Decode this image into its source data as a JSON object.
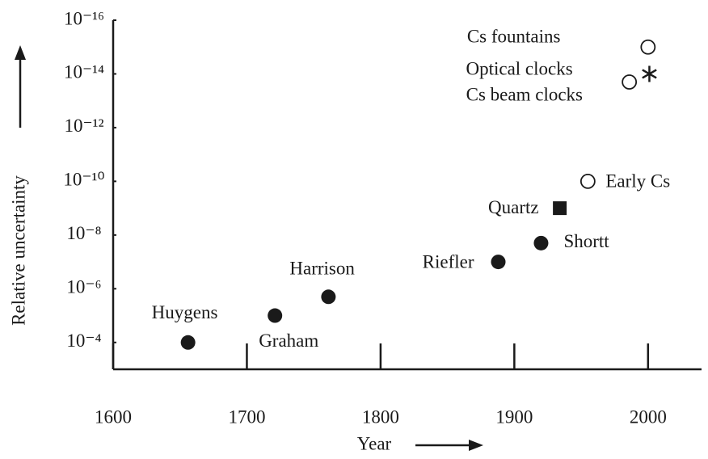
{
  "chart_data": {
    "type": "scatter",
    "xlabel": "Year",
    "ylabel": "Relative uncertainty",
    "x": [
      1656,
      1721,
      1761,
      1888,
      1920,
      1934,
      1955,
      1986,
      2000,
      2001
    ],
    "values": [
      0.0001,
      1e-05,
      2e-06,
      1e-07,
      2e-08,
      1e-09,
      1e-10,
      2e-14,
      1e-15,
      1e-14
    ],
    "labels": [
      "Huygens",
      "Graham",
      "Harrison",
      "Riefler",
      "Shortt",
      "Quartz",
      "Early Cs",
      "Cs beam clocks",
      "Cs fountains",
      "Optical clocks"
    ],
    "markers": [
      "filled",
      "filled",
      "filled",
      "filled",
      "filled",
      "square",
      "open",
      "open",
      "open",
      "star"
    ],
    "color": "#1a1a1a",
    "xlim": [
      1600,
      2040
    ],
    "xticks": [
      1600,
      1700,
      1800,
      1900,
      2000
    ],
    "ylim": [
      0.001,
      1e-16
    ],
    "ylog": true,
    "yticks": [
      {
        "value": 0.0001,
        "label": "10⁻⁴"
      },
      {
        "value": 1e-06,
        "label": "10⁻⁶"
      },
      {
        "value": 1e-08,
        "label": "10⁻⁸"
      },
      {
        "value": 1e-10,
        "label": "10⁻¹⁰"
      },
      {
        "value": 1e-12,
        "label": "10⁻¹²"
      },
      {
        "value": 1e-14,
        "label": "10⁻¹⁴"
      },
      {
        "value": 1e-16,
        "label": "10⁻¹⁶"
      }
    ]
  }
}
